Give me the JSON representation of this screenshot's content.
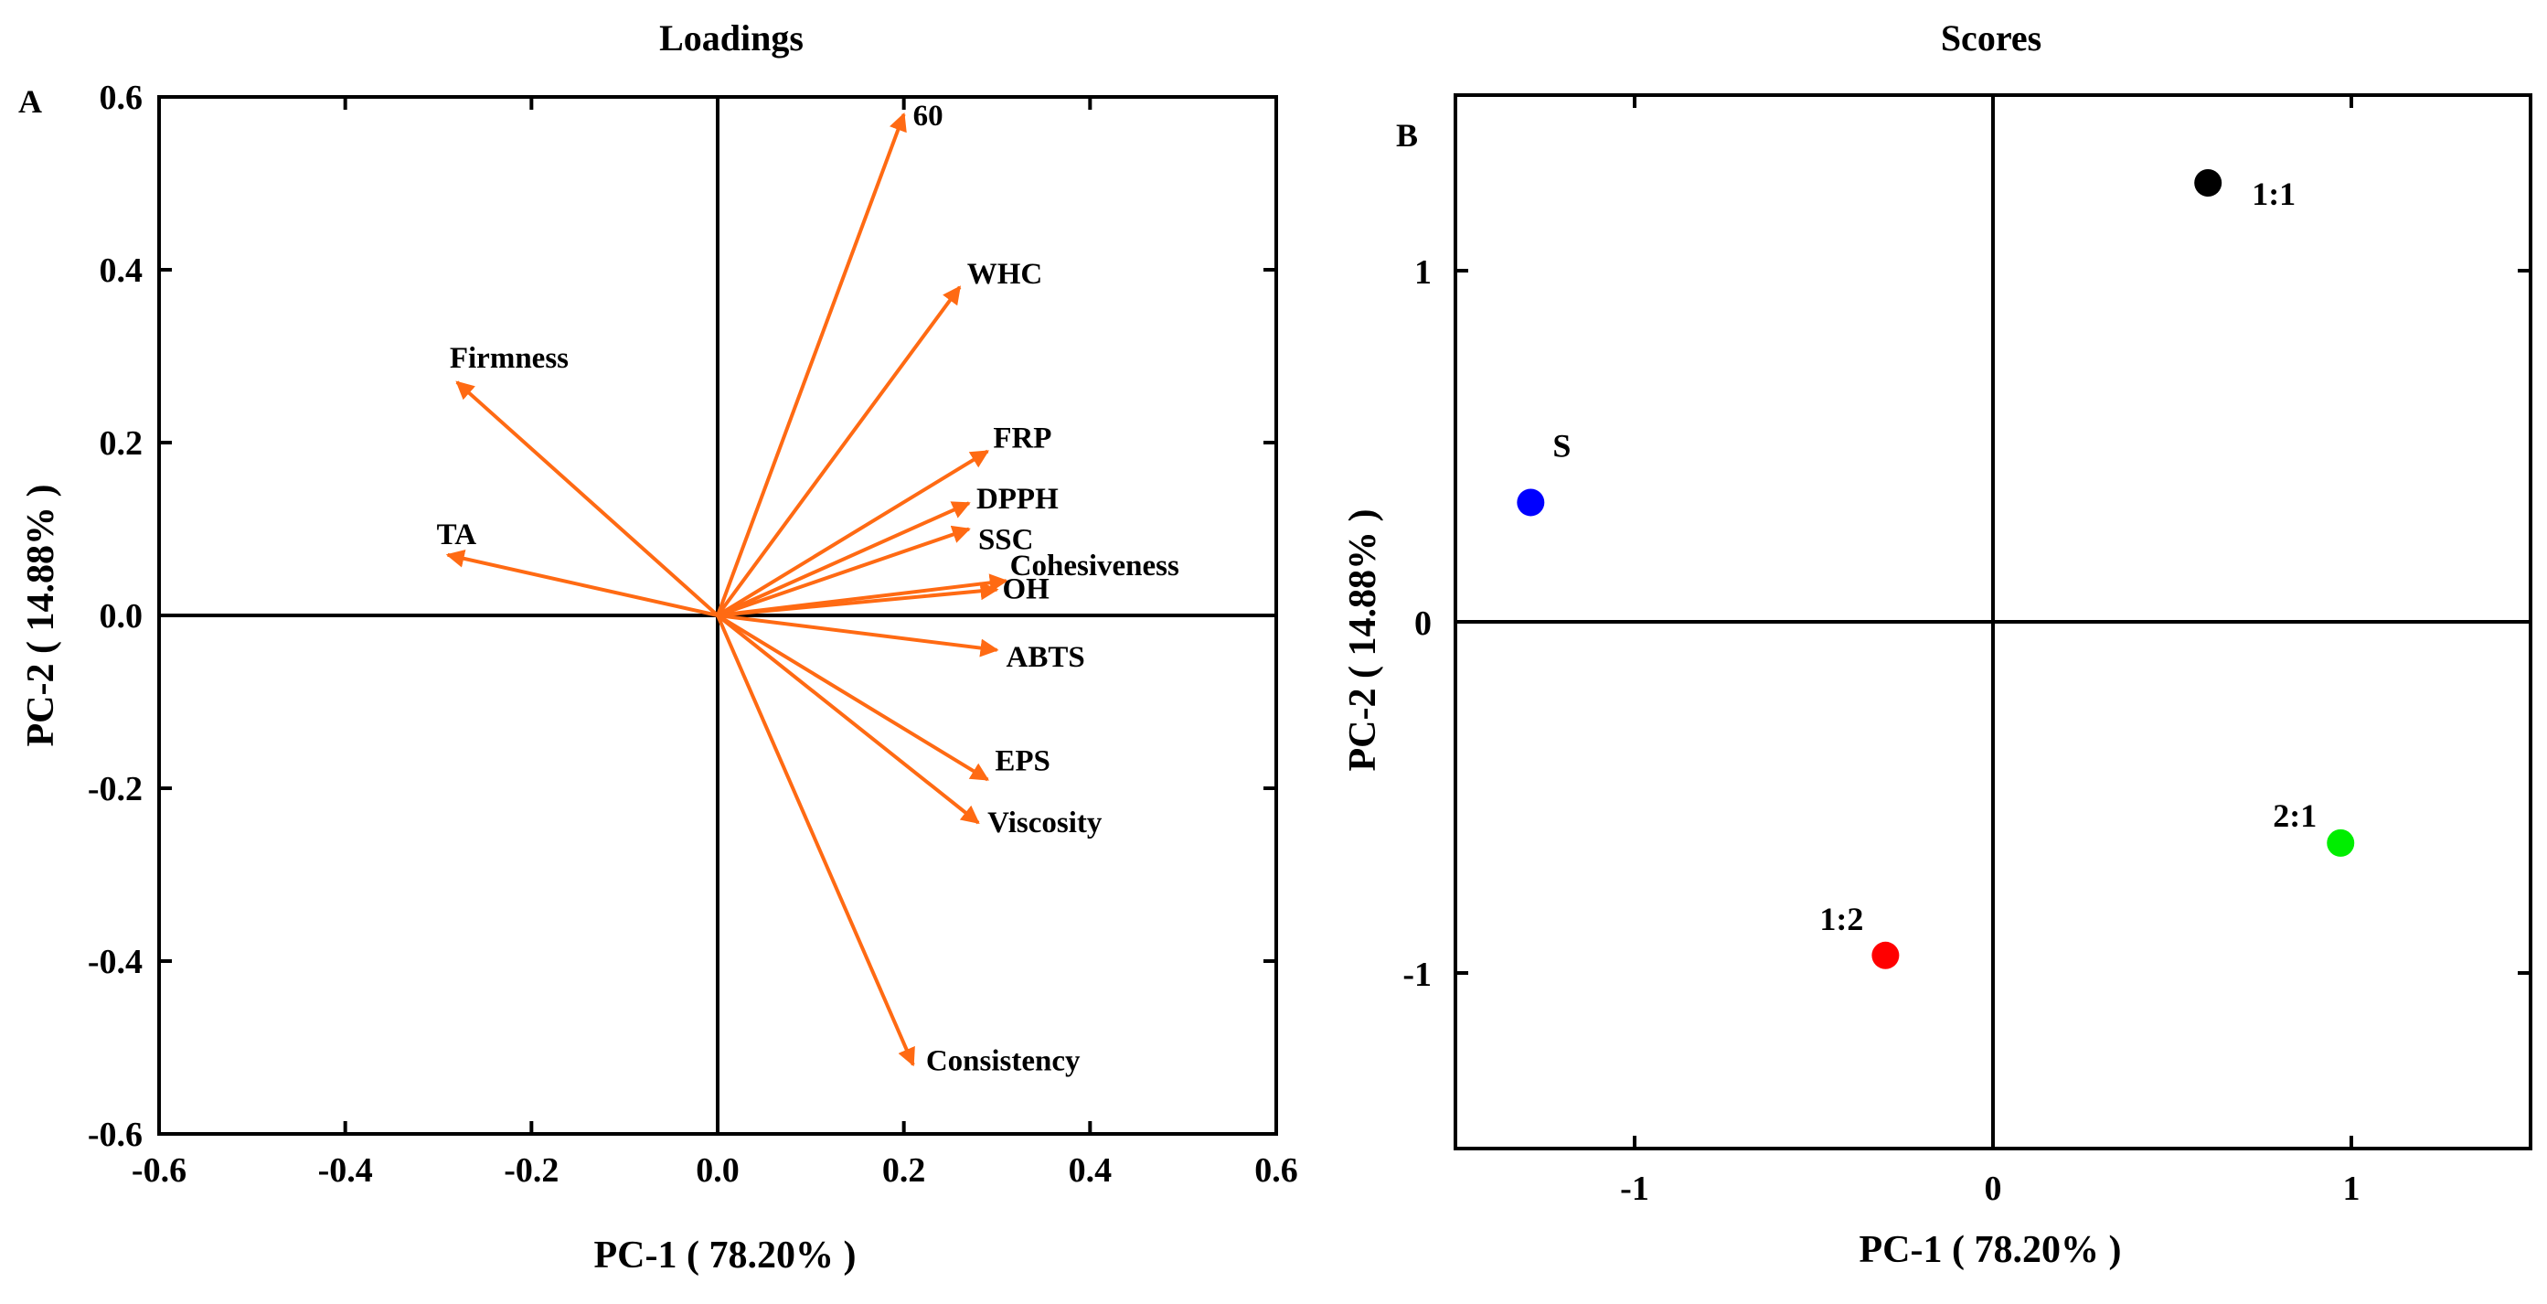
{
  "chart_data": [
    {
      "panel": "A",
      "type": "biplot-loadings",
      "title": "Loadings",
      "xlabel": "PC-1 ( 78.20% )",
      "ylabel": "PC-2 ( 14.88% )",
      "xlim": [
        -0.6,
        0.6
      ],
      "ylim": [
        -0.6,
        0.6
      ],
      "xticks": [
        -0.6,
        -0.4,
        -0.2,
        0.0,
        0.2,
        0.4,
        0.6
      ],
      "yticks": [
        -0.6,
        -0.4,
        -0.2,
        0.0,
        0.2,
        0.4,
        0.6
      ],
      "xtick_labels": [
        "-0.6",
        "-0.4",
        "-0.2",
        "0.0",
        "0.2",
        "0.4",
        "0.6"
      ],
      "ytick_labels": [
        "-0.6",
        "-0.4",
        "-0.2",
        "0.0",
        "0.2",
        "0.4",
        "0.6"
      ],
      "arrow_color": "#ff6a13",
      "vectors": [
        {
          "name": "60",
          "x": 0.2,
          "y": 0.58
        },
        {
          "name": "WHC",
          "x": 0.26,
          "y": 0.38
        },
        {
          "name": "Firmness",
          "x": -0.28,
          "y": 0.27
        },
        {
          "name": "FRP",
          "x": 0.29,
          "y": 0.19
        },
        {
          "name": "DPPH",
          "x": 0.27,
          "y": 0.13
        },
        {
          "name": "SSC",
          "x": 0.27,
          "y": 0.1
        },
        {
          "name": "Cohesiveness",
          "x": 0.31,
          "y": 0.04
        },
        {
          "name": "OH",
          "x": 0.3,
          "y": 0.03
        },
        {
          "name": "TA",
          "x": -0.29,
          "y": 0.07
        },
        {
          "name": "ABTS",
          "x": 0.3,
          "y": -0.04
        },
        {
          "name": "EPS",
          "x": 0.29,
          "y": -0.19
        },
        {
          "name": "Viscosity",
          "x": 0.28,
          "y": -0.24
        },
        {
          "name": "Consistency",
          "x": 0.21,
          "y": -0.52
        }
      ]
    },
    {
      "panel": "B",
      "type": "scatter",
      "title": "Scores",
      "xlabel": "PC-1 ( 78.20% )",
      "ylabel": "PC-2 ( 14.88% )",
      "xlim": [
        -1.5,
        1.5
      ],
      "ylim": [
        -1.5,
        1.5
      ],
      "xticks": [
        -1,
        0,
        1
      ],
      "yticks": [
        -1,
        0,
        1
      ],
      "xtick_labels": [
        "-1",
        "0",
        "1"
      ],
      "ytick_labels": [
        "-1",
        "0",
        "1"
      ],
      "points": [
        {
          "name": "1:1",
          "x": 0.6,
          "y": 1.25,
          "color": "#000000"
        },
        {
          "name": "S",
          "x": -1.29,
          "y": 0.34,
          "color": "#0000ff"
        },
        {
          "name": "2:1",
          "x": 0.97,
          "y": -0.63,
          "color": "#00ee00"
        },
        {
          "name": "1:2",
          "x": -0.3,
          "y": -0.95,
          "color": "#ff0000"
        }
      ]
    }
  ]
}
